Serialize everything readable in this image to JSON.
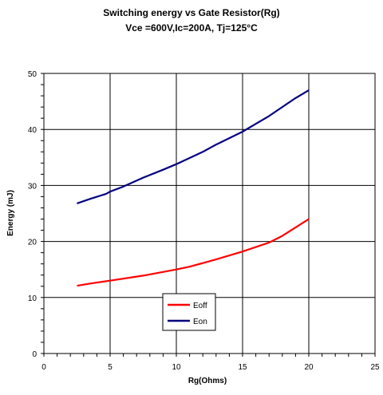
{
  "chart_data": {
    "type": "line",
    "title": "Switching energy vs Gate Resistor(Rg)",
    "subtitle": "Vce =600V,Ic=200A, Tj=125°C",
    "xlabel": "Rg(Ohms)",
    "ylabel": "Energy (mJ)",
    "xlim": [
      0,
      25
    ],
    "ylim": [
      0,
      50
    ],
    "xticks": [
      0,
      5,
      10,
      15,
      20,
      25
    ],
    "yticks": [
      0,
      10,
      20,
      30,
      40,
      50
    ],
    "grid": true,
    "legend_position": "bottom-center",
    "series": [
      {
        "name": "Eoff",
        "color": "#ff0000",
        "x": [
          2.5,
          3.5,
          5,
          7.5,
          10,
          11,
          13,
          15,
          17,
          18,
          20
        ],
        "y": [
          12.1,
          12.5,
          13.0,
          13.9,
          15.0,
          15.5,
          16.8,
          18.2,
          19.8,
          21.0,
          24.0
        ]
      },
      {
        "name": "Eon",
        "color": "#000080",
        "x": [
          2.5,
          3.5,
          4.7,
          5,
          6,
          7.5,
          9,
          10,
          12,
          13,
          15,
          16,
          17,
          18,
          19,
          20
        ],
        "y": [
          26.8,
          27.6,
          28.5,
          28.9,
          29.8,
          31.4,
          32.8,
          33.8,
          36.0,
          37.3,
          39.6,
          41.0,
          42.4,
          44.0,
          45.6,
          47.0
        ]
      }
    ]
  }
}
